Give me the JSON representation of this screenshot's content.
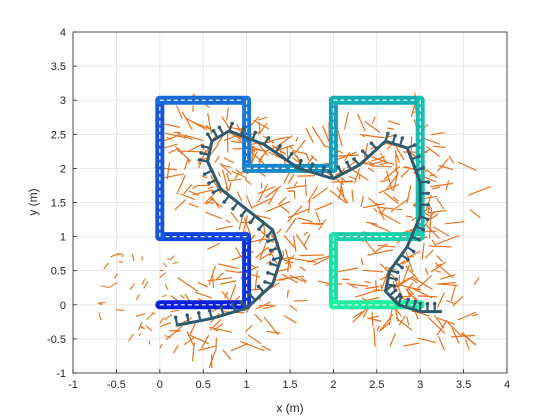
{
  "chart_data": {
    "type": "line",
    "title": "",
    "xlabel": "x (m)",
    "ylabel": "y (m)",
    "xlim": [
      -1,
      4
    ],
    "ylim": [
      -1,
      4
    ],
    "xticks": [
      -1,
      -0.5,
      0,
      0.5,
      1,
      1.5,
      2,
      2.5,
      3,
      3.5,
      4
    ],
    "xtick_labels": [
      "-1",
      "-0.5",
      "0",
      "0.5",
      "1",
      "1.5",
      "2",
      "2.5",
      "3",
      "3.5",
      "4"
    ],
    "yticks": [
      -1,
      -0.5,
      0,
      0.5,
      1,
      1.5,
      2,
      2.5,
      3,
      3.5,
      4
    ],
    "ytick_labels": [
      "-1",
      "-0.5",
      "0",
      "0.5",
      "1",
      "1.5",
      "2",
      "2.5",
      "3",
      "3.5",
      "4"
    ],
    "grid": true,
    "colors": {
      "path_start": "#0a1fe0",
      "path_mid": "#1a6fd8",
      "path_teal": "#17a8b8",
      "path_end": "#1ff0a0",
      "scatter_rays": "#e8731e",
      "trajectory": "#2e5a6e"
    },
    "series": [
      {
        "kind": "reference_path",
        "x": [
          0,
          1,
          1,
          0,
          0,
          1,
          1,
          1.5,
          2,
          2,
          3,
          3,
          2,
          2,
          3
        ],
        "y": [
          0,
          0,
          1,
          1,
          3,
          3,
          2,
          2,
          2,
          3,
          3,
          1,
          1,
          0,
          0
        ]
      },
      {
        "kind": "estimated_trajectory",
        "x": [
          0.2,
          0.6,
          1.0,
          1.3,
          1.4,
          1.3,
          1.0,
          0.7,
          0.55,
          0.6,
          0.8,
          1.2,
          1.6,
          2.0,
          2.3,
          2.6,
          2.85,
          3.0,
          3.0,
          2.85,
          2.65,
          2.6,
          2.75,
          3.0,
          3.25
        ],
        "y": [
          -0.3,
          -0.2,
          -0.05,
          0.3,
          0.7,
          1.1,
          1.4,
          1.7,
          2.1,
          2.4,
          2.55,
          2.35,
          2.0,
          1.85,
          2.05,
          2.4,
          2.3,
          1.8,
          1.3,
          0.85,
          0.5,
          0.2,
          0.0,
          -0.1,
          -0.1
        ]
      }
    ]
  }
}
